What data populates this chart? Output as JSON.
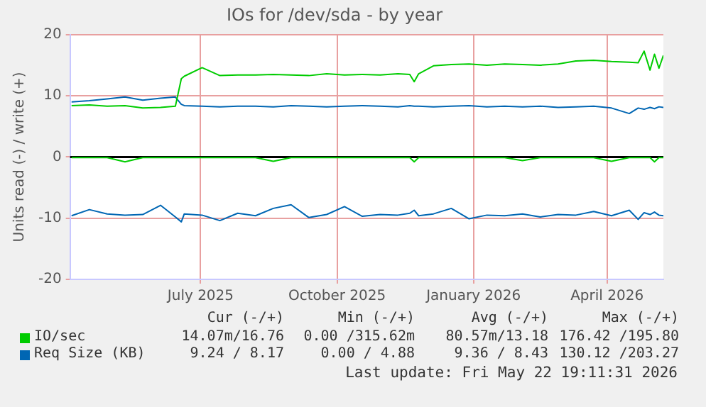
{
  "chart_data": {
    "type": "line",
    "title": "IOs for /dev/sda - by year",
    "ylabel": "Units read (-) / write (+)",
    "x": [
      "2025-04-18",
      "2025-04-30",
      "2025-05-12",
      "2025-05-24",
      "2025-06-05",
      "2025-06-17",
      "2025-06-27",
      "2025-07-01",
      "2025-07-03",
      "2025-07-15",
      "2025-07-27",
      "2025-08-08",
      "2025-08-20",
      "2025-09-01",
      "2025-09-13",
      "2025-09-25",
      "2025-10-07",
      "2025-10-19",
      "2025-10-31",
      "2025-11-12",
      "2025-11-24",
      "2025-12-02",
      "2025-12-05",
      "2025-12-08",
      "2025-12-18",
      "2025-12-30",
      "2026-01-11",
      "2026-01-23",
      "2026-02-04",
      "2026-02-16",
      "2026-02-28",
      "2026-03-12",
      "2026-03-24",
      "2026-04-05",
      "2026-04-17",
      "2026-04-29",
      "2026-05-05",
      "2026-05-09",
      "2026-05-13",
      "2026-05-16",
      "2026-05-19",
      "2026-05-22"
    ],
    "series": [
      {
        "name": "IO/sec",
        "color": "#00cc00",
        "values": [
          8.4,
          8.5,
          8.3,
          8.4,
          8.0,
          8.1,
          8.3,
          12.8,
          13.2,
          14.6,
          13.3,
          13.4,
          13.4,
          13.5,
          13.4,
          13.3,
          13.6,
          13.4,
          13.5,
          13.4,
          13.6,
          13.5,
          12.3,
          13.6,
          14.9,
          15.1,
          15.2,
          15.0,
          15.2,
          15.1,
          15.0,
          15.2,
          15.7,
          15.8,
          15.6,
          15.5,
          15.4,
          17.3,
          14.2,
          16.8,
          14.5,
          16.6
        ]
      },
      {
        "name": "Req Size (KB)",
        "color": "#0066b3",
        "values": [
          9.0,
          9.2,
          9.5,
          9.8,
          9.3,
          9.6,
          9.8,
          8.6,
          8.4,
          8.3,
          8.2,
          8.3,
          8.3,
          8.2,
          8.4,
          8.3,
          8.2,
          8.3,
          8.4,
          8.3,
          8.2,
          8.4,
          8.3,
          8.3,
          8.2,
          8.3,
          8.4,
          8.2,
          8.3,
          8.2,
          8.3,
          8.1,
          8.2,
          8.3,
          8.0,
          7.1,
          8.0,
          7.8,
          8.1,
          7.9,
          8.2,
          8.1
        ]
      },
      {
        "color": "#00cc00",
        "values": [
          -0.1,
          -0.1,
          -0.1,
          -0.8,
          -0.1,
          -0.1,
          -0.1,
          -0.1,
          -0.1,
          -0.1,
          -0.1,
          -0.1,
          -0.1,
          -0.7,
          -0.1,
          -0.1,
          -0.1,
          -0.1,
          -0.1,
          -0.1,
          -0.1,
          -0.1,
          -0.8,
          -0.1,
          -0.1,
          -0.1,
          -0.1,
          -0.1,
          -0.1,
          -0.6,
          -0.1,
          -0.1,
          -0.1,
          -0.1,
          -0.7,
          -0.1,
          -0.1,
          -0.1,
          -0.1,
          -0.8,
          -0.1,
          -0.1
        ]
      },
      {
        "color": "#0066b3",
        "values": [
          -9.6,
          -8.6,
          -9.3,
          -9.5,
          -9.4,
          -7.9,
          -9.8,
          -10.6,
          -9.3,
          -9.5,
          -10.4,
          -9.2,
          -9.6,
          -8.4,
          -7.8,
          -9.9,
          -9.4,
          -8.1,
          -9.7,
          -9.4,
          -9.5,
          -9.2,
          -8.7,
          -9.6,
          -9.3,
          -8.4,
          -10.1,
          -9.5,
          -9.6,
          -9.3,
          -9.8,
          -9.4,
          -9.5,
          -8.9,
          -9.6,
          -8.7,
          -10.2,
          -9.1,
          -9.4,
          -9.0,
          -9.5,
          -9.6
        ]
      }
    ],
    "xlim": [
      "2025-04-17",
      "2026-05-22"
    ],
    "xticks": [
      {
        "value": "2025-07-14",
        "label": "July 2025"
      },
      {
        "value": "2025-10-14",
        "label": "October 2025"
      },
      {
        "value": "2026-01-14",
        "label": "January 2026"
      },
      {
        "value": "2026-04-14",
        "label": "April 2026"
      }
    ],
    "ylim": [
      -20,
      20
    ],
    "yticks": [
      -20,
      -10,
      0,
      10,
      20
    ],
    "ref_lines": [
      {
        "axis": "y",
        "value": 0,
        "color": "#000000"
      }
    ],
    "grid": true,
    "legend": "bottom",
    "marker": "none",
    "line_style": "solid",
    "annotations": [
      "Cur (-/+)",
      "Min (-/+)",
      "Avg (-/+)",
      "Max (-/+)",
      "14.07m/16.76",
      "0.00 /315.62m",
      "80.57m/13.18",
      "176.42 /195.80",
      "9.24 / 8.17",
      "0.00 / 4.88",
      "9.36 / 8.43",
      "130.12 /203.27",
      "Last update: Fri May 22 19:11:31 2026"
    ]
  }
}
